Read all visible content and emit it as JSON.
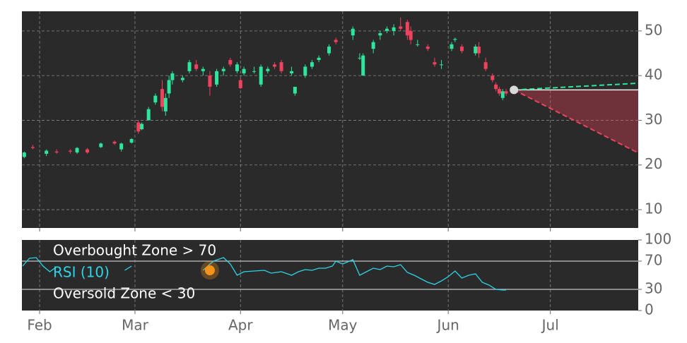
{
  "chart_data": [
    {
      "type": "candlestick",
      "up_color": "#2ee59d",
      "down_color": "#f0415d",
      "grid": true,
      "xlim": [
        26.8,
        207.8
      ],
      "ylim": [
        5.9,
        54.4
      ],
      "yticks": [
        10,
        20,
        30,
        40,
        50
      ],
      "x": [
        27.5,
        30,
        34,
        37,
        41,
        43,
        46,
        50,
        54,
        56,
        59,
        61,
        62,
        64,
        66,
        68,
        69,
        70,
        71,
        74,
        76,
        78,
        80,
        82,
        84,
        86,
        88,
        90,
        91,
        92,
        95,
        97,
        99,
        101,
        103,
        106,
        107,
        110,
        112,
        114,
        117,
        119,
        124,
        126,
        127,
        130,
        132,
        134,
        136,
        138,
        140,
        141,
        143,
        146,
        148,
        150,
        153,
        154,
        156,
        160,
        161,
        163,
        165,
        166,
        167,
        168,
        169
      ],
      "open": [
        21.8,
        24,
        22.5,
        23,
        23.2,
        22.8,
        23.5,
        24,
        25.2,
        23.5,
        25,
        29.5,
        28,
        30,
        34,
        37,
        32,
        36,
        39,
        39,
        41,
        42.5,
        41,
        40,
        38,
        41,
        43.5,
        41,
        39,
        40.5,
        41,
        38,
        41,
        42.5,
        43,
        40.5,
        36,
        40,
        42,
        43.5,
        45,
        48,
        49,
        44,
        40,
        46,
        49,
        50,
        50,
        51,
        52,
        50,
        47,
        46.5,
        43,
        42.5,
        46,
        48,
        46.5,
        45,
        46.5,
        43,
        40,
        38,
        37,
        35,
        36.5
      ],
      "high": [
        23,
        24.5,
        23.5,
        23.5,
        23.5,
        24,
        23.8,
        25,
        25.5,
        25,
        26,
        30,
        29.5,
        33,
        36,
        39,
        36,
        40,
        41,
        40,
        43.5,
        43.5,
        42,
        41,
        41.5,
        42,
        44,
        43,
        39.5,
        42,
        42,
        42.5,
        42,
        43,
        43.5,
        42,
        37.5,
        42.5,
        43.5,
        44.5,
        47,
        48.5,
        51,
        45,
        45,
        48,
        50,
        51,
        51.5,
        53,
        52.5,
        51,
        48,
        47,
        44,
        43.5,
        47.5,
        48.5,
        47,
        47,
        47.5,
        44,
        40.5,
        38.5,
        37.5,
        37,
        37
      ],
      "low": [
        21.5,
        23.5,
        22,
        22.5,
        22.6,
        22.5,
        22.5,
        23.8,
        24.5,
        23,
        24.8,
        27,
        27.8,
        30,
        33.5,
        32,
        31,
        35,
        38,
        38.5,
        40.5,
        41,
        40,
        35.5,
        37.5,
        40,
        42,
        40.5,
        37,
        40,
        40.5,
        37.5,
        40.5,
        41.5,
        40.5,
        40,
        35.5,
        39.5,
        41.5,
        43,
        44.5,
        47,
        48,
        43.5,
        40,
        45,
        48,
        49.5,
        49,
        50,
        48,
        47,
        46.5,
        45.5,
        42,
        41.5,
        45.5,
        47.5,
        45,
        44.5,
        44,
        41,
        38.5,
        36.5,
        35.5,
        34.5,
        35.5
      ],
      "close": [
        22.8,
        23.8,
        23.2,
        22.8,
        23,
        23.8,
        22.8,
        24.8,
        24.8,
        24.8,
        25.8,
        27.5,
        29.2,
        32.5,
        35.5,
        33,
        35,
        39,
        40.5,
        39.5,
        43,
        41.5,
        41.5,
        37.5,
        41,
        41.5,
        42.5,
        42.5,
        37.2,
        41.5,
        41,
        42,
        41.5,
        42,
        41,
        41,
        37.5,
        42,
        43,
        44,
        46.5,
        47.5,
        50.5,
        44,
        44.5,
        47.5,
        49.5,
        50.5,
        50.8,
        50.5,
        49,
        48,
        47,
        46,
        42.5,
        42.5,
        47,
        48.2,
        45.5,
        46.5,
        45,
        41.5,
        39,
        37,
        36,
        36.5,
        36
      ],
      "forecast": {
        "x": [
          171.3,
          207.8
        ],
        "upper": [
          36.8,
          38.3
        ],
        "lower": [
          36.8,
          22.7
        ],
        "upper_color": "#2ee59d",
        "lower_color": "#f0415d",
        "point_color": "#d9d9d9"
      }
    },
    {
      "type": "line",
      "grid": true,
      "xlim": [
        26.8,
        207.8
      ],
      "ylim": [
        0,
        100
      ],
      "yticks": [
        0,
        30,
        70,
        100
      ],
      "xticks": [
        {
          "value": 32,
          "label": "Feb"
        },
        {
          "value": 60,
          "label": "Mar"
        },
        {
          "value": 91,
          "label": "Apr"
        },
        {
          "value": 121,
          "label": "May"
        },
        {
          "value": 152,
          "label": "Jun"
        },
        {
          "value": 182,
          "label": "Jul"
        }
      ],
      "x": [
        27,
        29,
        31,
        33,
        35,
        37,
        45,
        57,
        59,
        70,
        80,
        83,
        86,
        88,
        90,
        92,
        95,
        98,
        100,
        103,
        106,
        108,
        110,
        112,
        114,
        116,
        118,
        119,
        121,
        124,
        126,
        128,
        130,
        132,
        134,
        136,
        138,
        140,
        142,
        144,
        146,
        148,
        150,
        152,
        154,
        156,
        158,
        160,
        162,
        164,
        166,
        168,
        169
      ],
      "series": [
        {
          "name": "RSI (10)",
          "color": "#2bd4e6",
          "values": [
            63,
            74,
            75,
            63,
            55,
            62,
            null,
            57,
            63,
            null,
            57,
            70,
            75,
            66,
            50,
            55,
            56,
            57,
            53,
            55,
            50,
            55,
            58,
            57,
            60,
            60,
            63,
            70,
            66,
            72,
            50,
            55,
            60,
            58,
            63,
            62,
            65,
            54,
            50,
            45,
            40,
            37,
            42,
            48,
            56,
            46,
            50,
            52,
            40,
            36,
            30,
            29,
            29
          ]
        }
      ],
      "hlines": [
        {
          "value": 70,
          "name": "Overbought Zone > 70"
        },
        {
          "value": 30,
          "name": "Oversold Zone < 30"
        }
      ],
      "marker": {
        "x": 82,
        "y": 57,
        "color": "#f7931a"
      }
    }
  ]
}
